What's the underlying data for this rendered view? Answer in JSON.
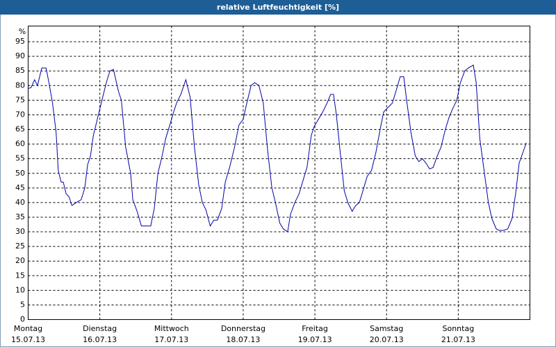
{
  "chart_data": {
    "type": "line",
    "title": "relative Luftfeuchtigkeit [%]",
    "y_label": "%",
    "x": [
      0,
      0.04,
      0.09,
      0.13,
      0.19,
      0.25,
      0.29,
      0.34,
      0.39,
      0.42,
      0.46,
      0.49,
      0.53,
      0.57,
      0.61,
      0.67,
      0.74,
      0.79,
      0.83,
      0.87,
      0.91,
      0.97,
      1.03,
      1.09,
      1.14,
      1.19,
      1.26,
      1.3,
      1.36,
      1.43,
      1.46,
      1.52,
      1.58,
      1.65,
      1.71,
      1.76,
      1.81,
      1.86,
      1.92,
      1.97,
      2.03,
      2.07,
      2.13,
      2.2,
      2.26,
      2.32,
      2.38,
      2.43,
      2.48,
      2.54,
      2.59,
      2.64,
      2.7,
      2.75,
      2.81,
      2.88,
      2.94,
      3.0,
      3.05,
      3.11,
      3.16,
      3.22,
      3.28,
      3.34,
      3.4,
      3.45,
      3.51,
      3.56,
      3.62,
      3.66,
      3.72,
      3.78,
      3.84,
      3.89,
      3.95,
      3.99,
      4.05,
      4.11,
      4.17,
      4.22,
      4.26,
      4.3,
      4.35,
      4.41,
      4.46,
      4.52,
      4.57,
      4.62,
      4.67,
      4.73,
      4.79,
      4.85,
      4.91,
      4.96,
      5.02,
      5.08,
      5.13,
      5.19,
      5.24,
      5.28,
      5.34,
      5.4,
      5.45,
      5.5,
      5.55,
      5.6,
      5.65,
      5.7,
      5.76,
      5.82,
      5.87,
      5.92,
      5.98,
      6.03,
      6.09,
      6.14,
      6.21,
      6.25,
      6.3,
      6.36,
      6.42,
      6.47,
      6.53,
      6.57,
      6.63,
      6.69,
      6.75,
      6.8,
      6.85,
      6.9,
      6.95
    ],
    "values": [
      79,
      79.3,
      82,
      80,
      86,
      86,
      81,
      74,
      64,
      51,
      47,
      47,
      43,
      42,
      39,
      40,
      41,
      45,
      53,
      56,
      63,
      69,
      75,
      81,
      85,
      85.5,
      78,
      75,
      59,
      50,
      41,
      37,
      32,
      32,
      32,
      38,
      50,
      55,
      62,
      66,
      71,
      74,
      77,
      82,
      76,
      59,
      46,
      40,
      37.5,
      32,
      34,
      34,
      38,
      47,
      52,
      59,
      66.5,
      68.5,
      74,
      80,
      81,
      80,
      74,
      58,
      45,
      40,
      33,
      31,
      30,
      36,
      40,
      43,
      48,
      52,
      63,
      66,
      68.5,
      71,
      74,
      77,
      77,
      70,
      58,
      44,
      40,
      37,
      39,
      40,
      44,
      49,
      51,
      57,
      65,
      71,
      72.5,
      74,
      78,
      83,
      83,
      75,
      64,
      56,
      54,
      55,
      53.5,
      51.5,
      52,
      55.5,
      59,
      65,
      69,
      72,
      75,
      81,
      85,
      86,
      87,
      81,
      62,
      51,
      40,
      34.5,
      31,
      30.5,
      30.5,
      31,
      34.5,
      43,
      53.5,
      57,
      60.5
    ],
    "color": "#0000a8",
    "xlim": [
      0,
      7
    ],
    "xticks": [
      {
        "value": 0,
        "label": [
          "Montag",
          "15.07.13"
        ]
      },
      {
        "value": 1,
        "label": [
          "Dienstag",
          "16.07.13"
        ]
      },
      {
        "value": 2,
        "label": [
          "Mittwoch",
          "17.07.13"
        ]
      },
      {
        "value": 3,
        "label": [
          "Donnerstag",
          "18.07.13"
        ]
      },
      {
        "value": 4,
        "label": [
          "Freitag",
          "19.07.13"
        ]
      },
      {
        "value": 5,
        "label": [
          "Samstag",
          "20.07.13"
        ]
      },
      {
        "value": 6,
        "label": [
          "Sonntag",
          "21.07.13"
        ]
      }
    ],
    "ylim": [
      0,
      100
    ],
    "yticks": [
      0,
      5,
      10,
      15,
      20,
      25,
      30,
      35,
      40,
      45,
      50,
      55,
      60,
      65,
      70,
      75,
      80,
      85,
      90,
      95
    ],
    "grid": true
  }
}
